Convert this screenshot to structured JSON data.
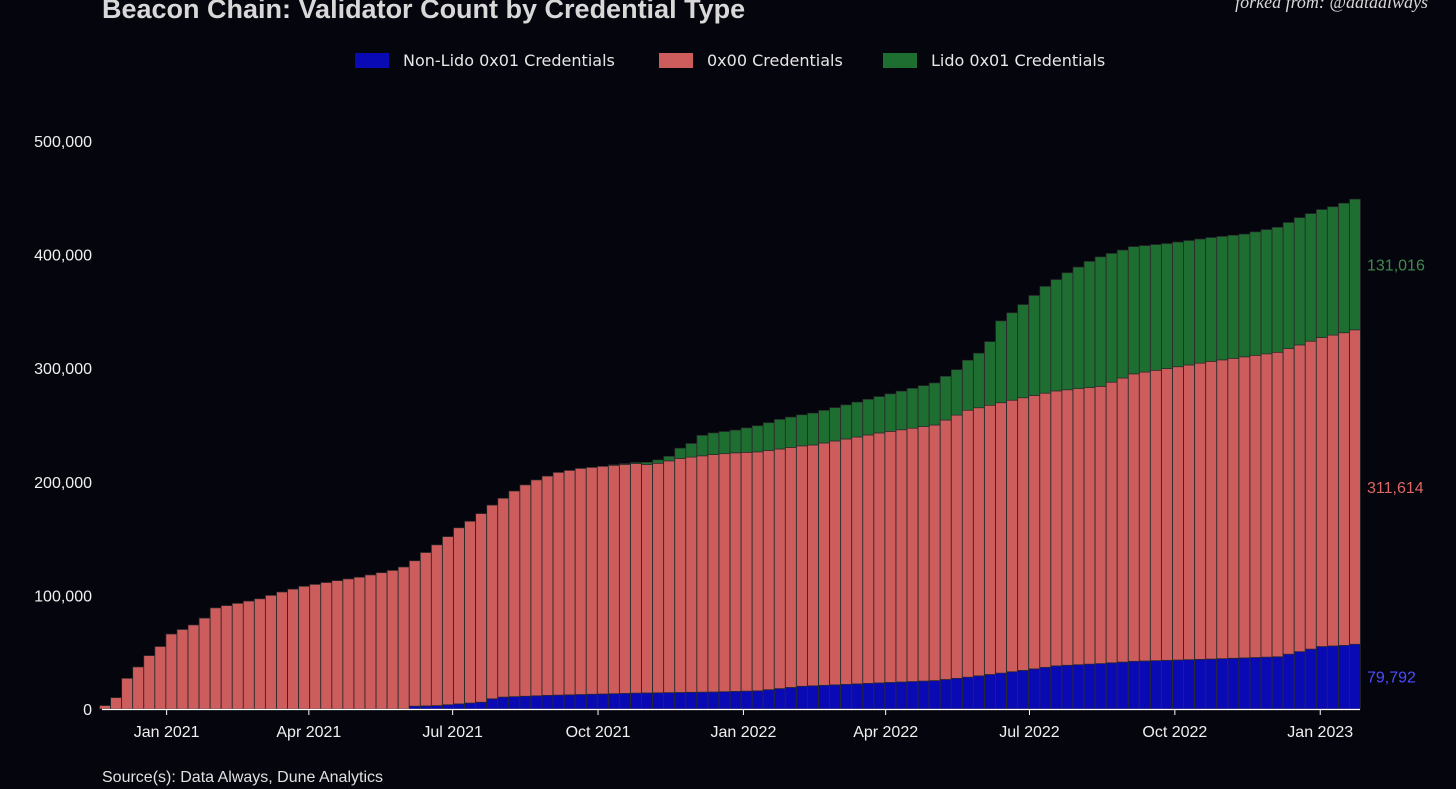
{
  "header": {
    "title": "Beacon Chain: Validator Count by Credential Type",
    "attribution": "forked from: @dataalways"
  },
  "footer": {
    "source": "Source(s): Data Always, Dune Analytics"
  },
  "colors": {
    "background": "#05050d",
    "non_lido": "#0a0ab4",
    "x00": "#cd5c5c",
    "lido": "#1e6e32",
    "bar_edge": "#2a2a2a",
    "end_label_non_lido": "#4c4cff",
    "end_label_x00": "#e06666",
    "end_label_lido": "#3f8a4f"
  },
  "chart_data": {
    "type": "bar",
    "stacked": true,
    "period": "weekly",
    "x_start": "2020-11-23",
    "x_end": "2023-01-23",
    "ylim": [
      0,
      530000
    ],
    "yticks": [
      0,
      100000,
      200000,
      300000,
      400000,
      500000
    ],
    "ytick_labels": [
      "0",
      "100,000",
      "200,000",
      "300,000",
      "400,000",
      "500,000"
    ],
    "xticks": [
      "2021-01-01",
      "2021-04-01",
      "2021-07-01",
      "2021-10-01",
      "2022-01-01",
      "2022-04-01",
      "2022-07-01",
      "2022-10-01",
      "2023-01-01"
    ],
    "xtick_labels": [
      "Jan 2021",
      "Apr 2021",
      "Jul 2021",
      "Oct 2021",
      "Jan 2022",
      "Apr 2022",
      "Jul 2022",
      "Oct 2022",
      "Jan 2023"
    ],
    "grid": false,
    "legend_position": "top-center",
    "series": [
      {
        "name": "Non-Lido 0x01 Credentials",
        "key": "non_lido",
        "final_value_label": "79,792",
        "keyframes": [
          [
            0,
            0
          ],
          [
            27,
            0
          ],
          [
            28,
            2500
          ],
          [
            30,
            3000
          ],
          [
            34,
            6000
          ],
          [
            35,
            9000
          ],
          [
            36,
            10500
          ],
          [
            40,
            12000
          ],
          [
            44,
            13000
          ],
          [
            48,
            14000
          ],
          [
            55,
            15000
          ],
          [
            59,
            16000
          ],
          [
            61,
            18000
          ],
          [
            63,
            20000
          ],
          [
            70,
            23000
          ],
          [
            75,
            25000
          ],
          [
            78,
            28000
          ],
          [
            83,
            34000
          ],
          [
            86,
            38000
          ],
          [
            90,
            40000
          ],
          [
            93,
            42000
          ],
          [
            100,
            44000
          ],
          [
            106,
            46000
          ],
          [
            110,
            55000
          ],
          [
            112,
            56000
          ],
          [
            116,
            60000
          ],
          [
            119,
            66000
          ],
          [
            121,
            70000
          ],
          [
            124,
            72000
          ],
          [
            126,
            74000
          ],
          [
            127,
            77000
          ],
          [
            129,
            79792
          ]
        ]
      },
      {
        "name": "0x00 Credentials",
        "key": "x00",
        "final_value_label": "311,614",
        "keyframes": [
          [
            0,
            3000
          ],
          [
            1,
            10000
          ],
          [
            2,
            27000
          ],
          [
            3,
            37000
          ],
          [
            4,
            47000
          ],
          [
            5,
            55000
          ],
          [
            6,
            66000
          ],
          [
            8,
            74000
          ],
          [
            9,
            80000
          ],
          [
            10,
            89000
          ],
          [
            14,
            97000
          ],
          [
            16,
            103000
          ],
          [
            18,
            108000
          ],
          [
            21,
            113000
          ],
          [
            23,
            116000
          ],
          [
            26,
            122000
          ],
          [
            28,
            128000
          ],
          [
            29,
            135000
          ],
          [
            31,
            148000
          ],
          [
            32,
            155000
          ],
          [
            33,
            160000
          ],
          [
            34,
            166000
          ],
          [
            36,
            175000
          ],
          [
            37,
            181000
          ],
          [
            38,
            186000
          ],
          [
            39,
            190000
          ],
          [
            40,
            193000
          ],
          [
            41,
            196000
          ],
          [
            43,
            199000
          ],
          [
            46,
            201000
          ],
          [
            48,
            202000
          ],
          [
            49,
            201000
          ],
          [
            50,
            202000
          ],
          [
            52,
            206000
          ],
          [
            54,
            208000
          ],
          [
            55,
            209000
          ],
          [
            57,
            210000
          ],
          [
            60,
            210500
          ],
          [
            64,
            212000
          ],
          [
            70,
            220000
          ],
          [
            75,
            225000
          ],
          [
            78,
            235000
          ],
          [
            83,
            240000
          ],
          [
            86,
            242000
          ],
          [
            90,
            244000
          ],
          [
            93,
            253000
          ],
          [
            100,
            262000
          ],
          [
            106,
            268000
          ],
          [
            110,
            272000
          ],
          [
            115,
            280000
          ],
          [
            119,
            292000
          ],
          [
            122,
            300000
          ],
          [
            125,
            304000
          ],
          [
            129,
            311614
          ]
        ]
      },
      {
        "name": "Lido 0x01 Credentials",
        "key": "lido",
        "final_value_label": "131,016",
        "keyframes": [
          [
            0,
            0
          ],
          [
            45,
            0
          ],
          [
            46,
            500
          ],
          [
            48,
            1000
          ],
          [
            49,
            2000
          ],
          [
            50,
            3000
          ],
          [
            51,
            4000
          ],
          [
            52,
            9000
          ],
          [
            53,
            12000
          ],
          [
            54,
            18000
          ],
          [
            55,
            19000
          ],
          [
            57,
            20000
          ],
          [
            59,
            23000
          ],
          [
            61,
            26000
          ],
          [
            64,
            28000
          ],
          [
            67,
            30000
          ],
          [
            70,
            32000
          ],
          [
            73,
            35000
          ],
          [
            75,
            37000
          ],
          [
            77,
            40000
          ],
          [
            78,
            44000
          ],
          [
            79,
            48000
          ],
          [
            80,
            56000
          ],
          [
            81,
            72000
          ],
          [
            82,
            77000
          ],
          [
            83,
            82000
          ],
          [
            84,
            88000
          ],
          [
            85,
            94000
          ],
          [
            86,
            98000
          ],
          [
            87,
            103000
          ],
          [
            88,
            107000
          ],
          [
            89,
            111000
          ],
          [
            90,
            114000
          ],
          [
            93,
            112000
          ],
          [
            96,
            110000
          ],
          [
            100,
            109000
          ],
          [
            103,
            108000
          ],
          [
            106,
            110000
          ],
          [
            108,
            112000
          ],
          [
            111,
            113000
          ],
          [
            113,
            115000
          ],
          [
            116,
            116000
          ],
          [
            118,
            119000
          ],
          [
            120,
            124000
          ],
          [
            122,
            123000
          ],
          [
            125,
            127000
          ],
          [
            129,
            131016
          ]
        ]
      }
    ]
  }
}
